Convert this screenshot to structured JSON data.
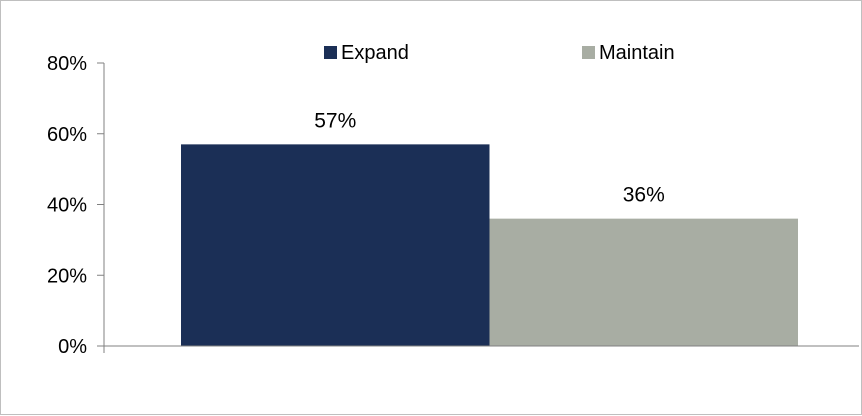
{
  "chart_data": {
    "type": "bar",
    "categories": [
      ""
    ],
    "series": [
      {
        "name": "Expand",
        "values": [
          57
        ],
        "data_label": "57%",
        "color": "#1b2f56"
      },
      {
        "name": "Maintain",
        "values": [
          36
        ],
        "data_label": "36%",
        "color": "#a8ada3"
      }
    ],
    "ylim": [
      0,
      80
    ],
    "yticks": [
      {
        "value": 0,
        "label": "0%"
      },
      {
        "value": 20,
        "label": "20%"
      },
      {
        "value": 40,
        "label": "40%"
      },
      {
        "value": 60,
        "label": "60%"
      },
      {
        "value": 80,
        "label": "80%"
      }
    ],
    "title": "",
    "xlabel": "",
    "ylabel": "",
    "grid": false,
    "legend_position": "top-center",
    "axis_color": "#808080"
  }
}
